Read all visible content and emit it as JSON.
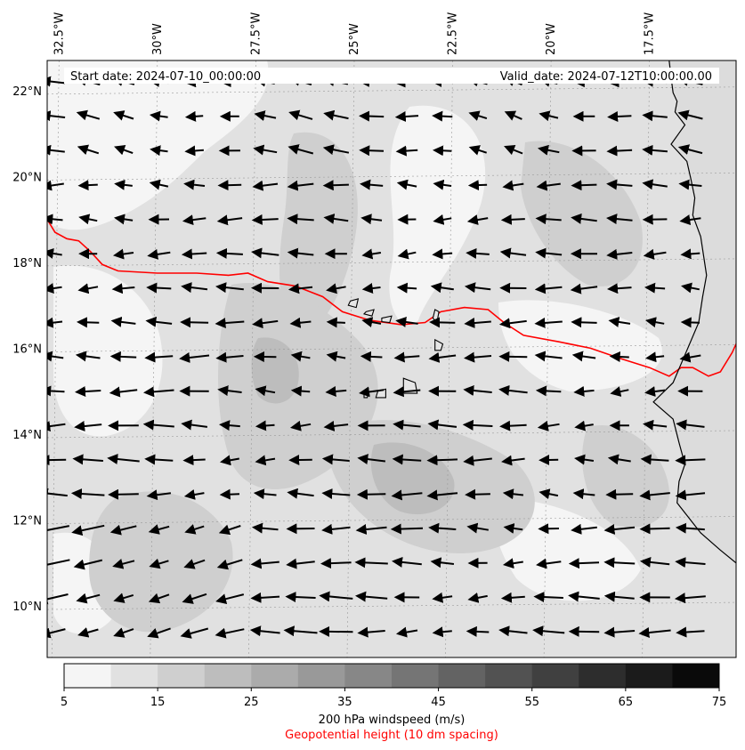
{
  "header": {
    "start_date": "Start date: 2024-07-10_00:00:00",
    "valid_date": "Valid_date: 2024-07-12T10:00:00.00"
  },
  "map": {
    "lon_range": [
      -32.8,
      -15.3
    ],
    "lat_range": [
      8.8,
      22.7
    ],
    "lon_labels": [
      "32.5°W",
      "30°W",
      "27.5°W",
      "25°W",
      "22.5°W",
      "20°W",
      "17.5°W"
    ],
    "lon_values": [
      -32.5,
      -30,
      -27.5,
      -25,
      -22.5,
      -20,
      -17.5
    ],
    "lat_labels": [
      "22°N",
      "20°N",
      "18°N",
      "16°N",
      "14°N",
      "12°N",
      "10°N"
    ],
    "lat_values": [
      22,
      20,
      18,
      16,
      14,
      12,
      10
    ],
    "gridlines": true,
    "fill_colors": [
      "#f5f5f5",
      "#e1e1e1",
      "#cfcfcf",
      "#bdbdbd"
    ]
  },
  "geopotential_contour": {
    "color": "#ff0000",
    "points_lon_lat": [
      [
        -32.8,
        19.0
      ],
      [
        -32.6,
        18.7
      ],
      [
        -32.3,
        18.55
      ],
      [
        -32.0,
        18.5
      ],
      [
        -31.7,
        18.25
      ],
      [
        -31.4,
        17.95
      ],
      [
        -31.0,
        17.8
      ],
      [
        -30.0,
        17.75
      ],
      [
        -29.0,
        17.75
      ],
      [
        -28.2,
        17.7
      ],
      [
        -27.7,
        17.75
      ],
      [
        -27.2,
        17.55
      ],
      [
        -26.5,
        17.45
      ],
      [
        -25.8,
        17.2
      ],
      [
        -25.3,
        16.85
      ],
      [
        -24.6,
        16.65
      ],
      [
        -23.8,
        16.55
      ],
      [
        -23.2,
        16.6
      ],
      [
        -22.8,
        16.85
      ],
      [
        -22.2,
        16.95
      ],
      [
        -21.6,
        16.9
      ],
      [
        -21.2,
        16.6
      ],
      [
        -20.7,
        16.3
      ],
      [
        -19.8,
        16.15
      ],
      [
        -19.0,
        16.0
      ],
      [
        -18.2,
        15.75
      ],
      [
        -17.5,
        15.55
      ],
      [
        -17.0,
        15.35
      ],
      [
        -16.7,
        15.55
      ],
      [
        -16.4,
        15.55
      ],
      [
        -16.0,
        15.35
      ],
      [
        -15.7,
        15.45
      ],
      [
        -15.4,
        15.9
      ],
      [
        -15.3,
        16.1
      ]
    ]
  },
  "coastline_mainland_lon_lat": [
    [
      -17.0,
      22.7
    ],
    [
      -16.95,
      22.3
    ],
    [
      -16.9,
      21.95
    ],
    [
      -16.8,
      21.75
    ],
    [
      -16.85,
      21.5
    ],
    [
      -16.6,
      21.2
    ],
    [
      -16.95,
      20.75
    ],
    [
      -16.55,
      20.35
    ],
    [
      -16.45,
      19.95
    ],
    [
      -16.35,
      19.5
    ],
    [
      -16.4,
      19.1
    ],
    [
      -16.2,
      18.6
    ],
    [
      -16.05,
      17.7
    ],
    [
      -16.15,
      17.2
    ],
    [
      -16.25,
      16.6
    ],
    [
      -16.55,
      15.95
    ],
    [
      -16.9,
      15.2
    ],
    [
      -17.4,
      14.75
    ],
    [
      -16.9,
      14.35
    ],
    [
      -16.75,
      13.8
    ],
    [
      -16.6,
      13.3
    ],
    [
      -16.75,
      12.9
    ],
    [
      -16.8,
      12.4
    ],
    [
      -16.2,
      11.7
    ],
    [
      -15.7,
      11.3
    ],
    [
      -15.3,
      11.0
    ]
  ],
  "islands_lon_lat": [
    [
      [
        -25.1,
        17.1
      ],
      [
        -24.9,
        17.15
      ],
      [
        -24.95,
        16.95
      ],
      [
        -25.15,
        17.0
      ]
    ],
    [
      [
        -24.7,
        16.85
      ],
      [
        -24.5,
        16.9
      ],
      [
        -24.55,
        16.75
      ],
      [
        -24.75,
        16.8
      ]
    ],
    [
      [
        -24.3,
        16.7
      ],
      [
        -24.05,
        16.75
      ],
      [
        -24.1,
        16.6
      ],
      [
        -24.3,
        16.62
      ]
    ],
    [
      [
        -22.95,
        16.9
      ],
      [
        -22.85,
        16.85
      ],
      [
        -22.9,
        16.6
      ],
      [
        -23.0,
        16.7
      ]
    ],
    [
      [
        -22.95,
        16.2
      ],
      [
        -22.75,
        16.1
      ],
      [
        -22.8,
        15.95
      ],
      [
        -22.95,
        15.95
      ]
    ],
    [
      [
        -23.75,
        15.3
      ],
      [
        -23.45,
        15.2
      ],
      [
        -23.4,
        14.95
      ],
      [
        -23.75,
        14.95
      ]
    ],
    [
      [
        -24.4,
        15.0
      ],
      [
        -24.2,
        15.05
      ],
      [
        -24.2,
        14.85
      ],
      [
        -24.45,
        14.85
      ]
    ],
    [
      [
        -24.75,
        14.95
      ],
      [
        -24.65,
        14.95
      ],
      [
        -24.67,
        14.85
      ],
      [
        -24.75,
        14.85
      ]
    ]
  ],
  "wind_vectors": {
    "color": "#000000",
    "description_units": "m/s components sampled on grid",
    "lat_rows": [
      22.2,
      21.4,
      20.6,
      19.8,
      19.0,
      18.2,
      17.4,
      16.6,
      15.8,
      15.0,
      14.2,
      13.4,
      12.6,
      11.8,
      11.0,
      10.2,
      9.4
    ],
    "lon_cols": [
      -32.6,
      -31.7,
      -30.8,
      -29.9,
      -29.0,
      -28.1,
      -27.2,
      -26.3,
      -25.4,
      -24.5,
      -23.6,
      -22.7,
      -21.8,
      -20.9,
      -20.0,
      -19.1,
      -18.2,
      -17.3,
      -16.4
    ]
  },
  "colorbar": {
    "ticks": [
      "5",
      "15",
      "25",
      "35",
      "45",
      "55",
      "65",
      "75"
    ],
    "colors": [
      "#f5f5f5",
      "#e1e1e1",
      "#cfcfcf",
      "#bdbdbd",
      "#ababab",
      "#999999",
      "#878787",
      "#757575",
      "#636363",
      "#525252",
      "#404040",
      "#2d2d2d",
      "#1b1b1b",
      "#0a0a0a"
    ],
    "label": "200 hPa windspeed (m/s)",
    "sublabel": "Geopotential height (10 dm spacing)",
    "sublabel_color": "#ff0000"
  }
}
